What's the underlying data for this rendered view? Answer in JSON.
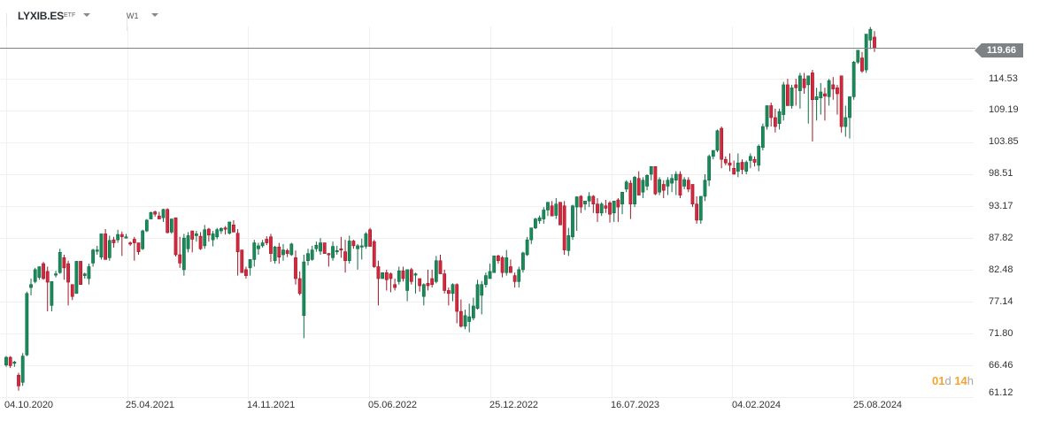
{
  "header": {
    "symbol": "LYXIB.ES",
    "symbol_type": "ETF",
    "interval": "W1"
  },
  "current_price": {
    "label": "119.66",
    "value": 119.66,
    "color": "#7d8287"
  },
  "countdown": {
    "days": "01",
    "days_unit": "d",
    "hours": "14",
    "hours_unit": "h",
    "color": "#f7a22b"
  },
  "colors": {
    "up": "#1a8a5a",
    "up_border": "#0f6b44",
    "down": "#d3283d",
    "down_border": "#a01828",
    "grid": "#f0f0f0",
    "price_line": "#7d8287"
  },
  "chart_data": {
    "type": "candlestick",
    "title": "LYXIB.ES ETF",
    "timeframe": "W1",
    "xlabel": "",
    "ylabel": "",
    "ylim": [
      61.12,
      122.5
    ],
    "grid": true,
    "y_ticks": [
      "114.53",
      "109.19",
      "103.85",
      "98.51",
      "93.17",
      "87.82",
      "82.48",
      "77.14",
      "71.80",
      "66.46",
      "61.12"
    ],
    "x_ticks": [
      "04.10.2020",
      "25.04.2021",
      "14.11.2021",
      "05.06.2022",
      "25.12.2022",
      "16.07.2023",
      "04.02.2024",
      "25.08.2024"
    ],
    "last_price": 119.66,
    "candles": [
      [
        66.5,
        68.0,
        66.2,
        67.8
      ],
      [
        67.8,
        68.0,
        66.0,
        66.4
      ],
      [
        66.8,
        67.2,
        66.2,
        67.0
      ],
      [
        64.8,
        65.2,
        62.2,
        63.0
      ],
      [
        63.6,
        68.5,
        63.0,
        68.0
      ],
      [
        68.2,
        78.8,
        68.0,
        78.5
      ],
      [
        79.5,
        81.0,
        78.2,
        80.0
      ],
      [
        80.5,
        82.8,
        80.2,
        82.5
      ],
      [
        81.2,
        83.0,
        80.8,
        83.0
      ],
      [
        83.5,
        83.8,
        80.8,
        81.0
      ],
      [
        82.2,
        83.0,
        75.5,
        80.4
      ],
      [
        76.5,
        80.5,
        75.5,
        80.5
      ],
      [
        81.6,
        82.3,
        81.2,
        81.8
      ],
      [
        82.0,
        86.0,
        81.8,
        85.4
      ],
      [
        84.5,
        85.0,
        80.8,
        82.8
      ],
      [
        83.5,
        84.0,
        76.5,
        80.4
      ],
      [
        80.0,
        80.0,
        77.4,
        78.0
      ],
      [
        78.5,
        83.9,
        78.5,
        83.9
      ],
      [
        83.9,
        83.9,
        80.0,
        80.0
      ],
      [
        81.5,
        82.0,
        81.0,
        81.8
      ],
      [
        81.0,
        83.5,
        80.0,
        83.0
      ],
      [
        83.6,
        86.0,
        83.0,
        85.8
      ],
      [
        85.8,
        86.5,
        85.0,
        85.8
      ],
      [
        84.6,
        87.0,
        84.2,
        88.5
      ],
      [
        88.5,
        89.3,
        84.2,
        84.2
      ],
      [
        84.5,
        88.2,
        84.0,
        87.4
      ],
      [
        87.5,
        88.0,
        86.2,
        87.0
      ],
      [
        87.5,
        89.2,
        87.0,
        88.4
      ],
      [
        88.4,
        88.9,
        84.8,
        88.0
      ],
      [
        88.0,
        88.5,
        88.0,
        88.0
      ],
      [
        87.0,
        87.2,
        86.5,
        86.8
      ],
      [
        87.6,
        88.0,
        84.0,
        87.0
      ],
      [
        87.0,
        87.0,
        85.0,
        85.5
      ],
      [
        86.0,
        89.2,
        85.8,
        89.0
      ],
      [
        89.0,
        91.0,
        88.8,
        90.8
      ],
      [
        91.0,
        92.2,
        91.0,
        92.1
      ],
      [
        92.2,
        92.4,
        91.4,
        91.8
      ],
      [
        91.5,
        92.2,
        91.5,
        91.0
      ],
      [
        91.2,
        92.7,
        90.5,
        92.6
      ],
      [
        92.6,
        92.8,
        88.6,
        88.7
      ],
      [
        88.8,
        91.0,
        88.5,
        91.0
      ],
      [
        91.2,
        89.8,
        84.7,
        85.0
      ],
      [
        85.0,
        88.0,
        82.8,
        83.6
      ],
      [
        82.5,
        88.5,
        81.5,
        87.8
      ],
      [
        86.0,
        88.8,
        85.4,
        88.2
      ],
      [
        89.0,
        89.0,
        85.4,
        87.6
      ],
      [
        88.2,
        89.0,
        87.2,
        88.5
      ],
      [
        88.1,
        88.8,
        85.8,
        86.0
      ],
      [
        86.5,
        90.0,
        86.0,
        89.2
      ],
      [
        89.3,
        89.5,
        87.2,
        88.3
      ],
      [
        87.5,
        89.0,
        86.4,
        88.5
      ],
      [
        88.0,
        89.5,
        87.6,
        89.2
      ],
      [
        89.0,
        89.6,
        88.5,
        89.4
      ],
      [
        89.5,
        89.8,
        88.4,
        89.4
      ],
      [
        88.6,
        90.2,
        88.4,
        90.5
      ],
      [
        90.0,
        90.8,
        89.8,
        88.8
      ],
      [
        88.6,
        89.3,
        81.5,
        85.5
      ],
      [
        85.8,
        85.8,
        82.0,
        82.0
      ],
      [
        82.5,
        83.0,
        81.0,
        81.5
      ],
      [
        82.8,
        84.0,
        81.5,
        84.2
      ],
      [
        84.2,
        87.5,
        83.0,
        87.0
      ],
      [
        86.0,
        87.0,
        85.0,
        86.5
      ],
      [
        86.5,
        87.5,
        86.2,
        87.0
      ],
      [
        87.6,
        88.1,
        86.6,
        87.0
      ],
      [
        88.0,
        88.5,
        83.8,
        85.2
      ],
      [
        84.0,
        86.5,
        83.5,
        86.3
      ],
      [
        86.3,
        87.0,
        83.5,
        84.6
      ],
      [
        85.0,
        86.8,
        84.0,
        85.8
      ],
      [
        85.7,
        86.0,
        84.6,
        85.2
      ],
      [
        85.0,
        87.0,
        84.8,
        86.8
      ],
      [
        84.5,
        85.7,
        80.0,
        81.0
      ],
      [
        81.0,
        82.2,
        78.2,
        78.5
      ],
      [
        74.8,
        85.0,
        71.0,
        83.8
      ],
      [
        84.0,
        86.0,
        83.2,
        85.2
      ],
      [
        84.2,
        86.5,
        84.0,
        85.8
      ],
      [
        86.0,
        87.2,
        85.5,
        86.6
      ],
      [
        85.6,
        87.8,
        85.0,
        87.0
      ],
      [
        87.0,
        87.0,
        85.5,
        85.2
      ],
      [
        85.2,
        85.3,
        83.0,
        85.0
      ],
      [
        84.5,
        87.2,
        84.0,
        86.4
      ],
      [
        85.5,
        86.5,
        85.0,
        85.7
      ],
      [
        86.0,
        88.0,
        84.5,
        85.8
      ],
      [
        85.5,
        87.5,
        82.0,
        84.0
      ],
      [
        84.0,
        88.2,
        83.5,
        87.3
      ],
      [
        87.3,
        87.5,
        86.0,
        86.5
      ],
      [
        86.0,
        86.8,
        82.5,
        86.5
      ],
      [
        86.5,
        87.7,
        84.2,
        86.5
      ],
      [
        86.4,
        88.8,
        86.0,
        88.5
      ],
      [
        89.2,
        89.5,
        87.8,
        86.4
      ],
      [
        87.2,
        87.5,
        82.8,
        83.0
      ],
      [
        83.0,
        84.0,
        76.5,
        81.0
      ],
      [
        81.0,
        82.0,
        81.0,
        82.0
      ],
      [
        82.0,
        82.5,
        79.0,
        80.8
      ],
      [
        81.8,
        82.0,
        78.7,
        81.0
      ],
      [
        80.0,
        81.0,
        79.0,
        79.5
      ],
      [
        80.5,
        83.0,
        80.0,
        82.3
      ],
      [
        82.3,
        83.0,
        80.5,
        81.0
      ],
      [
        79.0,
        82.5,
        77.2,
        82.5
      ],
      [
        82.5,
        82.8,
        80.0,
        80.5
      ],
      [
        81.8,
        82.0,
        78.5,
        81.8
      ],
      [
        81.0,
        81.0,
        78.8,
        79.8
      ],
      [
        78.0,
        80.2,
        76.5,
        80.0
      ],
      [
        80.2,
        82.5,
        79.0,
        79.8
      ],
      [
        81.0,
        82.5,
        79.5,
        80.0
      ],
      [
        80.5,
        84.8,
        80.2,
        84.0
      ],
      [
        84.0,
        85.0,
        82.0,
        81.8
      ],
      [
        81.8,
        82.5,
        78.5,
        79.0
      ],
      [
        79.0,
        79.5,
        76.5,
        78.5
      ],
      [
        78.5,
        80.2,
        77.2,
        80.0
      ],
      [
        80.0,
        80.2,
        73.5,
        75.5
      ],
      [
        75.5,
        77.5,
        72.8,
        73.0
      ],
      [
        73.0,
        75.8,
        72.5,
        74.8
      ],
      [
        73.8,
        76.8,
        72.0,
        74.6
      ],
      [
        74.4,
        77.8,
        74.0,
        76.4
      ],
      [
        76.0,
        80.8,
        75.8,
        80.0
      ],
      [
        78.2,
        80.6,
        75.0,
        80.0
      ],
      [
        80.0,
        82.0,
        79.5,
        81.5
      ],
      [
        81.0,
        83.5,
        81.0,
        82.2
      ],
      [
        82.0,
        84.5,
        82.2,
        84.8
      ],
      [
        84.8,
        85.0,
        83.5,
        84.0
      ],
      [
        84.5,
        84.8,
        81.2,
        82.0
      ],
      [
        82.0,
        85.8,
        81.5,
        84.5
      ],
      [
        83.0,
        84.2,
        82.5,
        82.0
      ],
      [
        81.5,
        82.0,
        79.5,
        80.5
      ],
      [
        80.5,
        83.0,
        79.5,
        82.5
      ],
      [
        82.5,
        85.5,
        82.0,
        85.3
      ],
      [
        85.0,
        88.0,
        84.8,
        87.5
      ],
      [
        87.5,
        89.5,
        86.8,
        89.5
      ],
      [
        89.5,
        91.2,
        89.3,
        91.0
      ],
      [
        90.7,
        91.6,
        90.2,
        91.2
      ],
      [
        91.0,
        93.0,
        90.2,
        92.5
      ],
      [
        92.5,
        93.8,
        91.5,
        93.8
      ],
      [
        93.2,
        94.0,
        92.0,
        91.5
      ],
      [
        91.6,
        94.5,
        91.0,
        93.5
      ],
      [
        93.8,
        93.8,
        91.0,
        90.0
      ],
      [
        93.2,
        94.0,
        85.0,
        85.8
      ],
      [
        85.7,
        89.5,
        84.8,
        88.2
      ],
      [
        88.0,
        93.4,
        87.5,
        93.2
      ],
      [
        93.0,
        94.8,
        89.0,
        94.7
      ],
      [
        94.8,
        95.0,
        92.0,
        93.0
      ],
      [
        93.5,
        94.0,
        92.5,
        94.0
      ],
      [
        94.0,
        95.5,
        93.0,
        94.8
      ],
      [
        94.8,
        95.0,
        92.0,
        93.5
      ],
      [
        93.5,
        94.5,
        90.5,
        92.0
      ],
      [
        92.0,
        93.8,
        91.5,
        93.5
      ],
      [
        93.2,
        94.2,
        92.0,
        92.8
      ],
      [
        93.7,
        94.0,
        90.4,
        91.8
      ],
      [
        92.0,
        94.0,
        90.5,
        94.0
      ],
      [
        94.2,
        94.5,
        90.5,
        93.0
      ],
      [
        93.5,
        95.0,
        91.8,
        95.5
      ],
      [
        96.0,
        97.5,
        95.5,
        97.2
      ],
      [
        97.0,
        97.5,
        91.0,
        93.5
      ],
      [
        93.5,
        98.2,
        93.0,
        98.0
      ],
      [
        97.8,
        99.0,
        95.5,
        95.0
      ],
      [
        95.5,
        98.0,
        94.5,
        97.5
      ],
      [
        96.5,
        98.5,
        95.8,
        98.3
      ],
      [
        98.5,
        99.8,
        97.5,
        99.8
      ],
      [
        99.8,
        99.8,
        95.0,
        95.2
      ],
      [
        95.5,
        98.0,
        95.0,
        97.6
      ],
      [
        96.8,
        97.5,
        94.5,
        95.8
      ],
      [
        96.5,
        98.0,
        95.0,
        97.5
      ],
      [
        97.0,
        98.5,
        95.5,
        97.8
      ],
      [
        97.5,
        99.0,
        95.0,
        98.5
      ],
      [
        98.5,
        99.0,
        94.5,
        95.0
      ],
      [
        96.5,
        98.0,
        96.0,
        97.6
      ],
      [
        97.5,
        98.0,
        95.5,
        96.0
      ],
      [
        96.8,
        96.8,
        93.0,
        93.5
      ],
      [
        93.5,
        94.8,
        90.2,
        90.8
      ],
      [
        90.8,
        94.0,
        90.2,
        94.8
      ],
      [
        94.8,
        98.5,
        94.0,
        97.5
      ],
      [
        97.5,
        101.8,
        96.5,
        101.5
      ],
      [
        101.5,
        102.5,
        101.0,
        102.5
      ],
      [
        102.5,
        106.0,
        102.2,
        105.8
      ],
      [
        106.2,
        106.5,
        99.5,
        101.0
      ],
      [
        101.0,
        101.5,
        100.0,
        100.4
      ],
      [
        100.4,
        102.0,
        99.0,
        100.0
      ],
      [
        99.5,
        100.8,
        98.5,
        98.5
      ],
      [
        99.0,
        102.0,
        98.0,
        100.4
      ],
      [
        100.5,
        101.0,
        98.5,
        99.3
      ],
      [
        99.0,
        100.8,
        98.5,
        100.5
      ],
      [
        100.8,
        102.0,
        99.5,
        101.5
      ],
      [
        101.0,
        101.5,
        99.8,
        100.5
      ],
      [
        100.0,
        103.5,
        99.0,
        103.2
      ],
      [
        103.0,
        107.0,
        102.5,
        106.5
      ],
      [
        106.5,
        110.0,
        106.0,
        110.0
      ],
      [
        110.0,
        110.5,
        106.5,
        108.0
      ],
      [
        108.0,
        109.5,
        105.5,
        106.5
      ],
      [
        107.0,
        109.5,
        106.0,
        109.0
      ],
      [
        108.5,
        114.0,
        107.5,
        113.5
      ],
      [
        113.5,
        114.5,
        111.0,
        110.0
      ],
      [
        110.0,
        113.5,
        109.5,
        113.0
      ],
      [
        113.5,
        114.5,
        110.0,
        113.0
      ],
      [
        112.5,
        115.5,
        109.5,
        115.0
      ],
      [
        114.5,
        115.5,
        112.0,
        113.0
      ],
      [
        113.5,
        114.0,
        107.0,
        115.0
      ],
      [
        115.5,
        116.0,
        104.0,
        111.0
      ],
      [
        111.0,
        113.0,
        107.5,
        111.5
      ],
      [
        111.3,
        113.8,
        108.5,
        112.3
      ],
      [
        112.0,
        113.0,
        107.5,
        111.6
      ],
      [
        111.5,
        114.5,
        110.0,
        114.2
      ],
      [
        113.5,
        114.8,
        111.0,
        112.8
      ],
      [
        113.0,
        113.5,
        108.5,
        112.0
      ],
      [
        115.0,
        115.0,
        105.5,
        106.5
      ],
      [
        106.5,
        110.0,
        104.8,
        108.0
      ],
      [
        108.0,
        111.5,
        104.5,
        111.5
      ],
      [
        111.5,
        117.5,
        111.0,
        117.3
      ],
      [
        117.3,
        119.0,
        117.0,
        119.3
      ],
      [
        118.0,
        119.0,
        115.5,
        115.8
      ],
      [
        116.0,
        122.0,
        115.5,
        122.0
      ],
      [
        121.0,
        123.2,
        119.5,
        122.8
      ],
      [
        121.5,
        122.5,
        119.0,
        119.66
      ]
    ]
  }
}
